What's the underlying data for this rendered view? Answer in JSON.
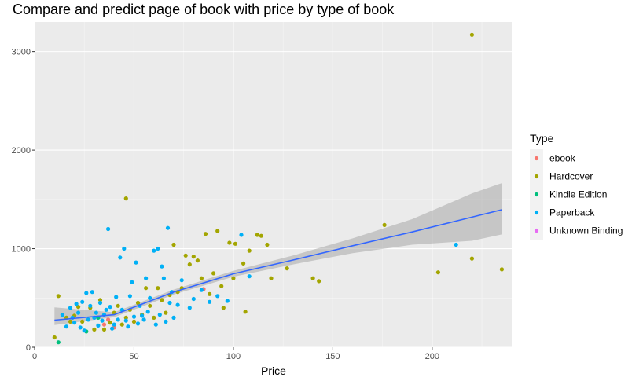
{
  "chart_data": {
    "type": "scatter",
    "title": "Compare and predict page of book with price by type of book",
    "xlabel": "Price",
    "ylabel": "",
    "xlim": [
      0,
      240
    ],
    "ylim": [
      0,
      3300
    ],
    "xticks": [
      0,
      50,
      100,
      150,
      200
    ],
    "yticks": [
      0,
      1000,
      2000,
      3000
    ],
    "grid": true,
    "legend": {
      "title": "Type",
      "position": "right",
      "entries": [
        {
          "name": "ebook",
          "color": "#F8766D"
        },
        {
          "name": "Hardcover",
          "color": "#A3A500"
        },
        {
          "name": "Kindle Edition",
          "color": "#00BF7D"
        },
        {
          "name": "Paperback",
          "color": "#00B0F6"
        },
        {
          "name": "Unknown Binding",
          "color": "#E76BF3"
        }
      ]
    },
    "series": [
      {
        "name": "ebook",
        "color": "#F8766D",
        "points": [
          [
            35,
            230
          ],
          [
            37,
            280
          ],
          [
            40,
            200
          ],
          [
            50,
            260
          ],
          [
            85,
            590
          ]
        ]
      },
      {
        "name": "Hardcover",
        "color": "#A3A500",
        "points": [
          [
            10,
            100
          ],
          [
            12,
            520
          ],
          [
            16,
            300
          ],
          [
            18,
            260
          ],
          [
            20,
            320
          ],
          [
            22,
            410
          ],
          [
            24,
            260
          ],
          [
            28,
            400
          ],
          [
            30,
            180
          ],
          [
            33,
            480
          ],
          [
            35,
            180
          ],
          [
            38,
            250
          ],
          [
            40,
            350
          ],
          [
            42,
            420
          ],
          [
            44,
            230
          ],
          [
            46,
            300
          ],
          [
            46,
            1510
          ],
          [
            48,
            380
          ],
          [
            50,
            260
          ],
          [
            52,
            450
          ],
          [
            54,
            330
          ],
          [
            56,
            600
          ],
          [
            58,
            420
          ],
          [
            60,
            300
          ],
          [
            62,
            600
          ],
          [
            64,
            480
          ],
          [
            66,
            350
          ],
          [
            68,
            530
          ],
          [
            70,
            1040
          ],
          [
            72,
            560
          ],
          [
            74,
            600
          ],
          [
            76,
            930
          ],
          [
            78,
            840
          ],
          [
            80,
            920
          ],
          [
            82,
            880
          ],
          [
            84,
            700
          ],
          [
            86,
            1150
          ],
          [
            88,
            540
          ],
          [
            90,
            750
          ],
          [
            92,
            1180
          ],
          [
            94,
            620
          ],
          [
            95,
            400
          ],
          [
            98,
            1060
          ],
          [
            100,
            700
          ],
          [
            101,
            1050
          ],
          [
            105,
            850
          ],
          [
            106,
            360
          ],
          [
            108,
            980
          ],
          [
            112,
            1140
          ],
          [
            114,
            1130
          ],
          [
            117,
            1040
          ],
          [
            119,
            700
          ],
          [
            127,
            800
          ],
          [
            140,
            700
          ],
          [
            143,
            670
          ],
          [
            176,
            1240
          ],
          [
            203,
            760
          ],
          [
            220,
            900
          ],
          [
            220,
            3170
          ],
          [
            235,
            790
          ]
        ]
      },
      {
        "name": "Kindle Edition",
        "color": "#00BF7D",
        "points": [
          [
            12,
            50
          ],
          [
            26,
            160
          ],
          [
            32,
            300
          ]
        ]
      },
      {
        "name": "Paperback",
        "color": "#00B0F6",
        "points": [
          [
            14,
            330
          ],
          [
            16,
            210
          ],
          [
            18,
            400
          ],
          [
            19,
            300
          ],
          [
            20,
            250
          ],
          [
            21,
            440
          ],
          [
            22,
            350
          ],
          [
            23,
            200
          ],
          [
            24,
            460
          ],
          [
            25,
            170
          ],
          [
            26,
            550
          ],
          [
            27,
            280
          ],
          [
            28,
            420
          ],
          [
            29,
            560
          ],
          [
            30,
            300
          ],
          [
            31,
            350
          ],
          [
            32,
            220
          ],
          [
            33,
            450
          ],
          [
            34,
            270
          ],
          [
            35,
            330
          ],
          [
            36,
            380
          ],
          [
            37,
            1200
          ],
          [
            38,
            410
          ],
          [
            39,
            190
          ],
          [
            40,
            230
          ],
          [
            41,
            510
          ],
          [
            42,
            280
          ],
          [
            43,
            910
          ],
          [
            44,
            380
          ],
          [
            45,
            1000
          ],
          [
            46,
            270
          ],
          [
            47,
            210
          ],
          [
            48,
            520
          ],
          [
            49,
            660
          ],
          [
            50,
            310
          ],
          [
            51,
            860
          ],
          [
            52,
            240
          ],
          [
            53,
            420
          ],
          [
            54,
            320
          ],
          [
            55,
            280
          ],
          [
            56,
            700
          ],
          [
            57,
            360
          ],
          [
            58,
            500
          ],
          [
            60,
            980
          ],
          [
            61,
            230
          ],
          [
            62,
            1000
          ],
          [
            63,
            330
          ],
          [
            64,
            820
          ],
          [
            65,
            700
          ],
          [
            66,
            260
          ],
          [
            67,
            1210
          ],
          [
            68,
            450
          ],
          [
            69,
            560
          ],
          [
            70,
            300
          ],
          [
            72,
            430
          ],
          [
            74,
            680
          ],
          [
            78,
            400
          ],
          [
            80,
            490
          ],
          [
            84,
            580
          ],
          [
            88,
            460
          ],
          [
            92,
            520
          ],
          [
            97,
            470
          ],
          [
            104,
            1140
          ],
          [
            108,
            720
          ],
          [
            212,
            1040
          ]
        ]
      },
      {
        "name": "Unknown Binding",
        "color": "#E76BF3",
        "points": []
      }
    ],
    "smooth": {
      "color": "#3366FF",
      "band_color": "#999999",
      "points": [
        [
          10,
          275
        ],
        [
          40,
          330
        ],
        [
          70,
          560
        ],
        [
          100,
          745
        ],
        [
          130,
          885
        ],
        [
          160,
          1030
        ],
        [
          190,
          1170
        ],
        [
          220,
          1320
        ],
        [
          235,
          1395
        ]
      ],
      "lower": [
        [
          10,
          225
        ],
        [
          40,
          305
        ],
        [
          70,
          535
        ],
        [
          100,
          715
        ],
        [
          130,
          840
        ],
        [
          160,
          955
        ],
        [
          190,
          1040
        ],
        [
          220,
          1080
        ],
        [
          235,
          1145
        ]
      ],
      "upper": [
        [
          10,
          405
        ],
        [
          40,
          355
        ],
        [
          70,
          585
        ],
        [
          100,
          775
        ],
        [
          130,
          930
        ],
        [
          160,
          1105
        ],
        [
          190,
          1300
        ],
        [
          220,
          1560
        ],
        [
          235,
          1665
        ]
      ]
    }
  }
}
